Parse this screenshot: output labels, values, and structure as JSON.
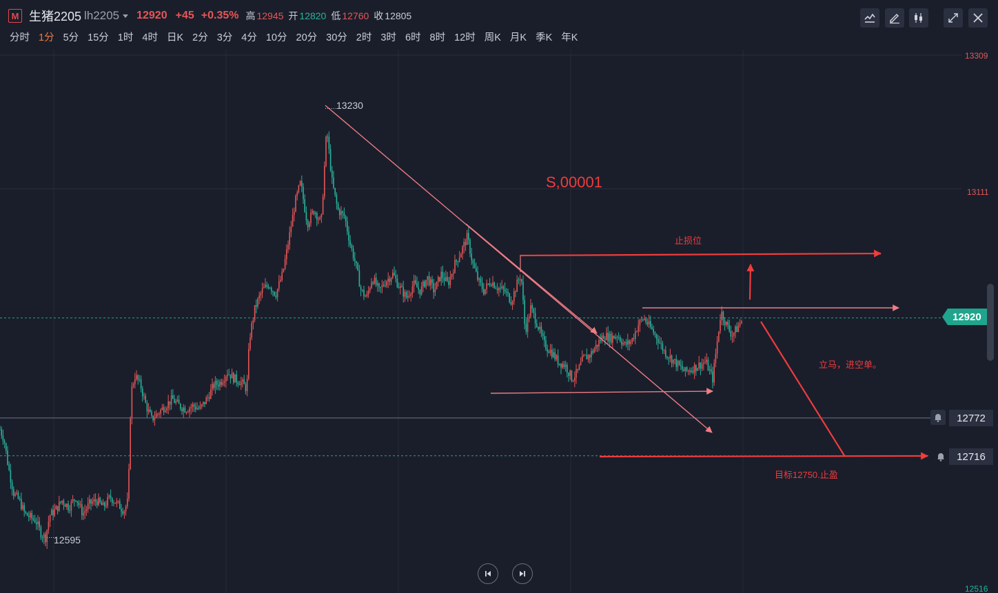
{
  "header": {
    "logo": "M",
    "symbol_name": "生猪2205",
    "symbol_code": "lh2205",
    "last": "12920",
    "change": "+45",
    "change_pct": "+0.35%",
    "high_label": "高",
    "high": "12945",
    "open_label": "开",
    "open": "12820",
    "low_label": "低",
    "low": "12760",
    "close_label": "收",
    "close": "12805"
  },
  "periods": [
    "分时",
    "1分",
    "5分",
    "15分",
    "1时",
    "4时",
    "日K",
    "2分",
    "3分",
    "4分",
    "10分",
    "20分",
    "30分",
    "2时",
    "3时",
    "6时",
    "8时",
    "12时",
    "周K",
    "月K",
    "季K",
    "年K"
  ],
  "active_period": "1分",
  "toolbar_icons": [
    "indicator-icon",
    "draw-icon",
    "candle-type-icon",
    "shrink-icon",
    "close-icon"
  ],
  "colors": {
    "up": "#e65656",
    "down": "#28b49c",
    "annotation": "#f03c3c",
    "trendline": "#f07c84",
    "background": "#1a1e2b"
  },
  "chart_data": {
    "type": "candlestick",
    "interval": "1分",
    "y_axis": {
      "ticks": [
        13309,
        13111,
        12516
      ],
      "ylim": [
        12516,
        13309
      ]
    },
    "last_price": 12920,
    "alert_levels": [
      12772,
      12716
    ],
    "marked_high": 13230,
    "marked_low": 12595,
    "close_path": [
      [
        0,
        12755
      ],
      [
        6,
        12740
      ],
      [
        12,
        12700
      ],
      [
        20,
        12660
      ],
      [
        28,
        12650
      ],
      [
        36,
        12630
      ],
      [
        44,
        12625
      ],
      [
        52,
        12620
      ],
      [
        60,
        12600
      ],
      [
        66,
        12595
      ],
      [
        72,
        12628
      ],
      [
        80,
        12635
      ],
      [
        90,
        12650
      ],
      [
        100,
        12640
      ],
      [
        110,
        12655
      ],
      [
        120,
        12630
      ],
      [
        130,
        12645
      ],
      [
        140,
        12650
      ],
      [
        150,
        12640
      ],
      [
        160,
        12655
      ],
      [
        170,
        12645
      ],
      [
        180,
        12635
      ],
      [
        186,
        12650
      ],
      [
        190,
        12810
      ],
      [
        196,
        12835
      ],
      [
        204,
        12820
      ],
      [
        212,
        12790
      ],
      [
        220,
        12770
      ],
      [
        230,
        12780
      ],
      [
        240,
        12790
      ],
      [
        250,
        12800
      ],
      [
        260,
        12790
      ],
      [
        270,
        12785
      ],
      [
        280,
        12790
      ],
      [
        290,
        12785
      ],
      [
        300,
        12800
      ],
      [
        310,
        12820
      ],
      [
        320,
        12825
      ],
      [
        330,
        12840
      ],
      [
        340,
        12830
      ],
      [
        350,
        12825
      ],
      [
        358,
        12815
      ],
      [
        362,
        12890
      ],
      [
        370,
        12935
      ],
      [
        380,
        12960
      ],
      [
        390,
        12970
      ],
      [
        400,
        12955
      ],
      [
        410,
        12985
      ],
      [
        418,
        13030
      ],
      [
        428,
        13090
      ],
      [
        436,
        13120
      ],
      [
        446,
        13060
      ],
      [
        456,
        13080
      ],
      [
        466,
        13060
      ],
      [
        474,
        13200
      ],
      [
        482,
        13120
      ],
      [
        490,
        13080
      ],
      [
        500,
        13070
      ],
      [
        508,
        13030
      ],
      [
        516,
        13000
      ],
      [
        524,
        12960
      ],
      [
        532,
        12950
      ],
      [
        540,
        12980
      ],
      [
        550,
        12960
      ],
      [
        560,
        12975
      ],
      [
        570,
        12985
      ],
      [
        580,
        12965
      ],
      [
        590,
        12950
      ],
      [
        600,
        12970
      ],
      [
        610,
        12960
      ],
      [
        620,
        12980
      ],
      [
        630,
        12960
      ],
      [
        640,
        12985
      ],
      [
        650,
        12970
      ],
      [
        660,
        13000
      ],
      [
        670,
        13020
      ],
      [
        678,
        13040
      ],
      [
        686,
        13000
      ],
      [
        694,
        12975
      ],
      [
        702,
        12960
      ],
      [
        712,
        12975
      ],
      [
        722,
        12965
      ],
      [
        732,
        12960
      ],
      [
        742,
        12945
      ],
      [
        750,
        12970
      ],
      [
        756,
        12985
      ],
      [
        762,
        12900
      ],
      [
        770,
        12935
      ],
      [
        780,
        12910
      ],
      [
        790,
        12880
      ],
      [
        800,
        12870
      ],
      [
        810,
        12855
      ],
      [
        820,
        12850
      ],
      [
        830,
        12830
      ],
      [
        838,
        12840
      ],
      [
        846,
        12860
      ],
      [
        856,
        12865
      ],
      [
        866,
        12880
      ],
      [
        876,
        12895
      ],
      [
        886,
        12890
      ],
      [
        896,
        12895
      ],
      [
        906,
        12880
      ],
      [
        916,
        12885
      ],
      [
        926,
        12910
      ],
      [
        934,
        12920
      ],
      [
        944,
        12905
      ],
      [
        954,
        12890
      ],
      [
        964,
        12870
      ],
      [
        974,
        12860
      ],
      [
        984,
        12850
      ],
      [
        994,
        12840
      ],
      [
        1004,
        12845
      ],
      [
        1014,
        12850
      ],
      [
        1024,
        12855
      ],
      [
        1034,
        12830
      ],
      [
        1040,
        12880
      ],
      [
        1046,
        12930
      ],
      [
        1054,
        12910
      ],
      [
        1062,
        12895
      ],
      [
        1070,
        12905
      ],
      [
        1078,
        12920
      ]
    ],
    "annotations": [
      {
        "text": "S,00001"
      },
      {
        "text": "止损位"
      },
      {
        "text": "立马，进空单。"
      },
      {
        "text": "目标12750.止盈"
      }
    ]
  }
}
